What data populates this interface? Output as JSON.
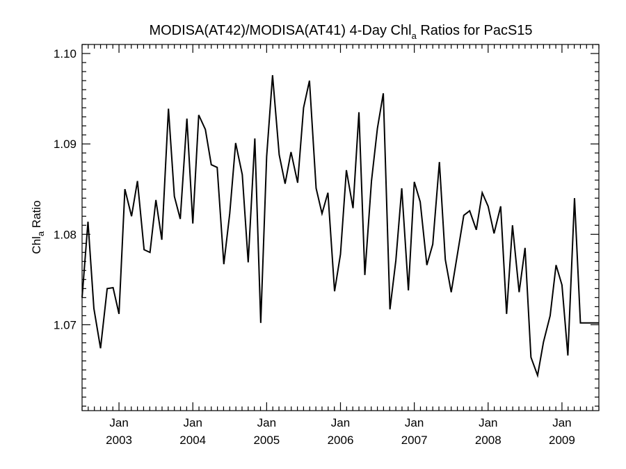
{
  "chart_data": {
    "type": "line",
    "title_prefix": "MODISA(AT42)/MODISA(AT41) 4-Day Chl",
    "title_sub": "a",
    "title_suffix": " Ratios for PacS15",
    "ylabel_prefix": "Chl",
    "ylabel_sub": "a",
    "ylabel_suffix": " Ratio",
    "xlim": [
      2002.5,
      2009.5
    ],
    "ylim": [
      1.0605,
      1.101
    ],
    "yticks": [
      {
        "value": 1.07,
        "label": "1.07"
      },
      {
        "value": 1.08,
        "label": "1.08"
      },
      {
        "value": 1.09,
        "label": "1.09"
      },
      {
        "value": 1.1,
        "label": "1.10"
      }
    ],
    "xticks": [
      {
        "value": 2003.0,
        "month": "Jan",
        "year": "2003"
      },
      {
        "value": 2004.0,
        "month": "Jan",
        "year": "2004"
      },
      {
        "value": 2005.0,
        "month": "Jan",
        "year": "2005"
      },
      {
        "value": 2006.0,
        "month": "Jan",
        "year": "2006"
      },
      {
        "value": 2007.0,
        "month": "Jan",
        "year": "2007"
      },
      {
        "value": 2008.0,
        "month": "Jan",
        "year": "2008"
      },
      {
        "value": 2009.0,
        "month": "Jan",
        "year": "2009"
      }
    ],
    "series": [
      {
        "x": [
          2002.5,
          2002.58,
          2002.66,
          2002.75,
          2002.84,
          2002.92,
          2003.0,
          2003.08,
          2003.17,
          2003.25,
          2003.34,
          2003.42,
          2003.5,
          2003.58,
          2003.67,
          2003.75,
          2003.83,
          2003.92,
          2004.0,
          2004.08,
          2004.17,
          2004.25,
          2004.33,
          2004.42,
          2004.5,
          2004.58,
          2004.67,
          2004.75,
          2004.84,
          2004.92,
          2005.0,
          2005.08,
          2005.17,
          2005.25,
          2005.33,
          2005.42,
          2005.5,
          2005.58,
          2005.67,
          2005.75,
          2005.83,
          2005.92,
          2006.0,
          2006.08,
          2006.17,
          2006.25,
          2006.33,
          2006.42,
          2006.5,
          2006.58,
          2006.67,
          2006.75,
          2006.83,
          2006.92,
          2007.0,
          2007.08,
          2007.17,
          2007.25,
          2007.34,
          2007.42,
          2007.5,
          2007.67,
          2007.75,
          2007.84,
          2007.92,
          2008.0,
          2008.08,
          2008.17,
          2008.25,
          2008.33,
          2008.42,
          2008.5,
          2008.58,
          2008.67,
          2008.75,
          2008.84,
          2008.92,
          2009.0,
          2009.08,
          2009.17,
          2009.25,
          2009.33,
          2009.42,
          2009.5
        ],
        "y": [
          1.073,
          1.0814,
          1.0718,
          1.0674,
          1.074,
          1.0741,
          1.0712,
          1.085,
          1.082,
          1.0859,
          1.0783,
          1.078,
          1.0838,
          1.0794,
          1.0939,
          1.0842,
          1.0817,
          1.0928,
          1.0812,
          1.0932,
          1.0916,
          1.0877,
          1.0874,
          1.0767,
          1.0823,
          1.0901,
          1.0866,
          1.0769,
          1.0906,
          1.0702,
          1.0886,
          1.0976,
          1.0888,
          1.0856,
          1.0891,
          1.0857,
          1.094,
          1.097,
          1.0851,
          1.0823,
          1.0846,
          1.0737,
          1.0778,
          1.0871,
          1.0829,
          1.0935,
          1.0755,
          1.0859,
          1.0917,
          1.0956,
          1.0717,
          1.0771,
          1.0851,
          1.0738,
          1.0858,
          1.0836,
          1.0766,
          1.0789,
          1.088,
          1.0772,
          1.0736,
          1.0821,
          1.0826,
          1.0805,
          1.0846,
          1.0831,
          1.0801,
          1.0831,
          1.0712,
          1.081,
          1.0736,
          1.0785,
          1.0664,
          1.0644,
          1.0681,
          1.071,
          1.0766,
          1.0744,
          1.0666,
          1.084,
          1.0702,
          1.0702,
          1.0702,
          1.0702
        ]
      }
    ]
  }
}
